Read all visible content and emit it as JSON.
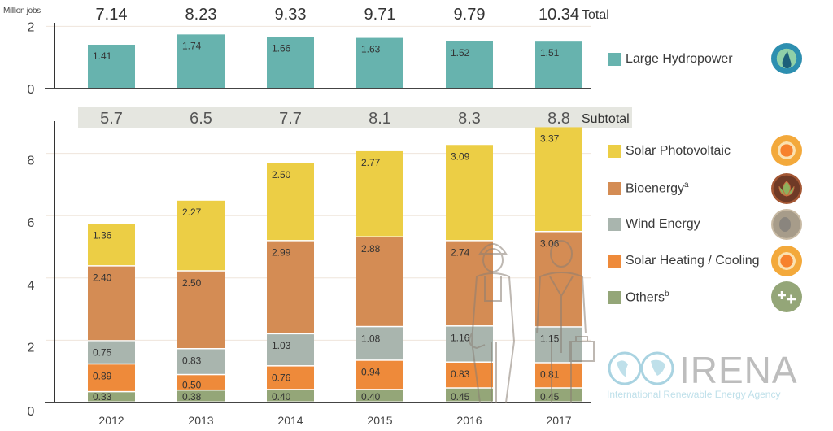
{
  "chart_data": [
    {
      "type": "bar",
      "title": "",
      "ylabel": "Million jobs",
      "ylim": [
        0,
        2
      ],
      "yticks": [
        0,
        2
      ],
      "categories": [
        "2012",
        "2013",
        "2014",
        "2015",
        "2016",
        "2017"
      ],
      "series": [
        {
          "name": "Large Hydropower",
          "color": "#67b3ae",
          "values": [
            1.41,
            1.74,
            1.66,
            1.63,
            1.52,
            1.51
          ]
        }
      ],
      "totals_label": "Total",
      "totals": [
        "7.14",
        "8.23",
        "9.33",
        "9.71",
        "9.79",
        "10.34"
      ],
      "grid": true
    },
    {
      "type": "stacked-bar",
      "ylim": [
        0,
        9
      ],
      "yticks": [
        0,
        2,
        4,
        6,
        8
      ],
      "categories": [
        "2012",
        "2013",
        "2014",
        "2015",
        "2016",
        "2017"
      ],
      "subtotal_label": "Subtotal",
      "subtotals": [
        "5.7",
        "6.5",
        "7.7",
        "8.1",
        "8.3",
        "8.8"
      ],
      "series": [
        {
          "name": "Others",
          "superscript": "b",
          "color": "#94a678",
          "values": [
            0.33,
            0.38,
            0.4,
            0.4,
            0.45,
            0.45
          ]
        },
        {
          "name": "Solar Heating / Cooling",
          "color": "#ee8a3a",
          "values": [
            0.89,
            0.5,
            0.76,
            0.94,
            0.83,
            0.81
          ]
        },
        {
          "name": "Wind Energy",
          "color": "#a9b5ae",
          "values": [
            0.75,
            0.83,
            1.03,
            1.08,
            1.16,
            1.15
          ]
        },
        {
          "name": "Bioenergy",
          "superscript": "a",
          "color": "#d48c54",
          "values": [
            2.4,
            2.5,
            2.99,
            2.88,
            2.74,
            3.06
          ]
        },
        {
          "name": "Solar Photovoltaic",
          "color": "#ecce45",
          "values": [
            1.36,
            2.27,
            2.5,
            2.77,
            3.09,
            3.37
          ]
        }
      ],
      "grid": true
    }
  ],
  "legend": [
    {
      "label": "Large Hydropower",
      "sup": "",
      "color": "#67b3ae",
      "icon": "water-drop-icon"
    },
    {
      "label": "Solar Photovoltaic",
      "sup": "",
      "color": "#ecce45",
      "icon": "sun-icon"
    },
    {
      "label": "Bioenergy",
      "sup": "a",
      "color": "#d48c54",
      "icon": "leaf-icon"
    },
    {
      "label": "Wind Energy",
      "sup": "",
      "color": "#a9b5ae",
      "icon": "wind-icon"
    },
    {
      "label": "Solar Heating / Cooling",
      "sup": "",
      "color": "#ee8a3a",
      "icon": "sun-icon"
    },
    {
      "label": "Others",
      "sup": "b",
      "color": "#94a678",
      "icon": "plus-plus-icon"
    }
  ],
  "logo": {
    "name": "IRENA",
    "subtitle": "International Renewable Energy Agency"
  }
}
